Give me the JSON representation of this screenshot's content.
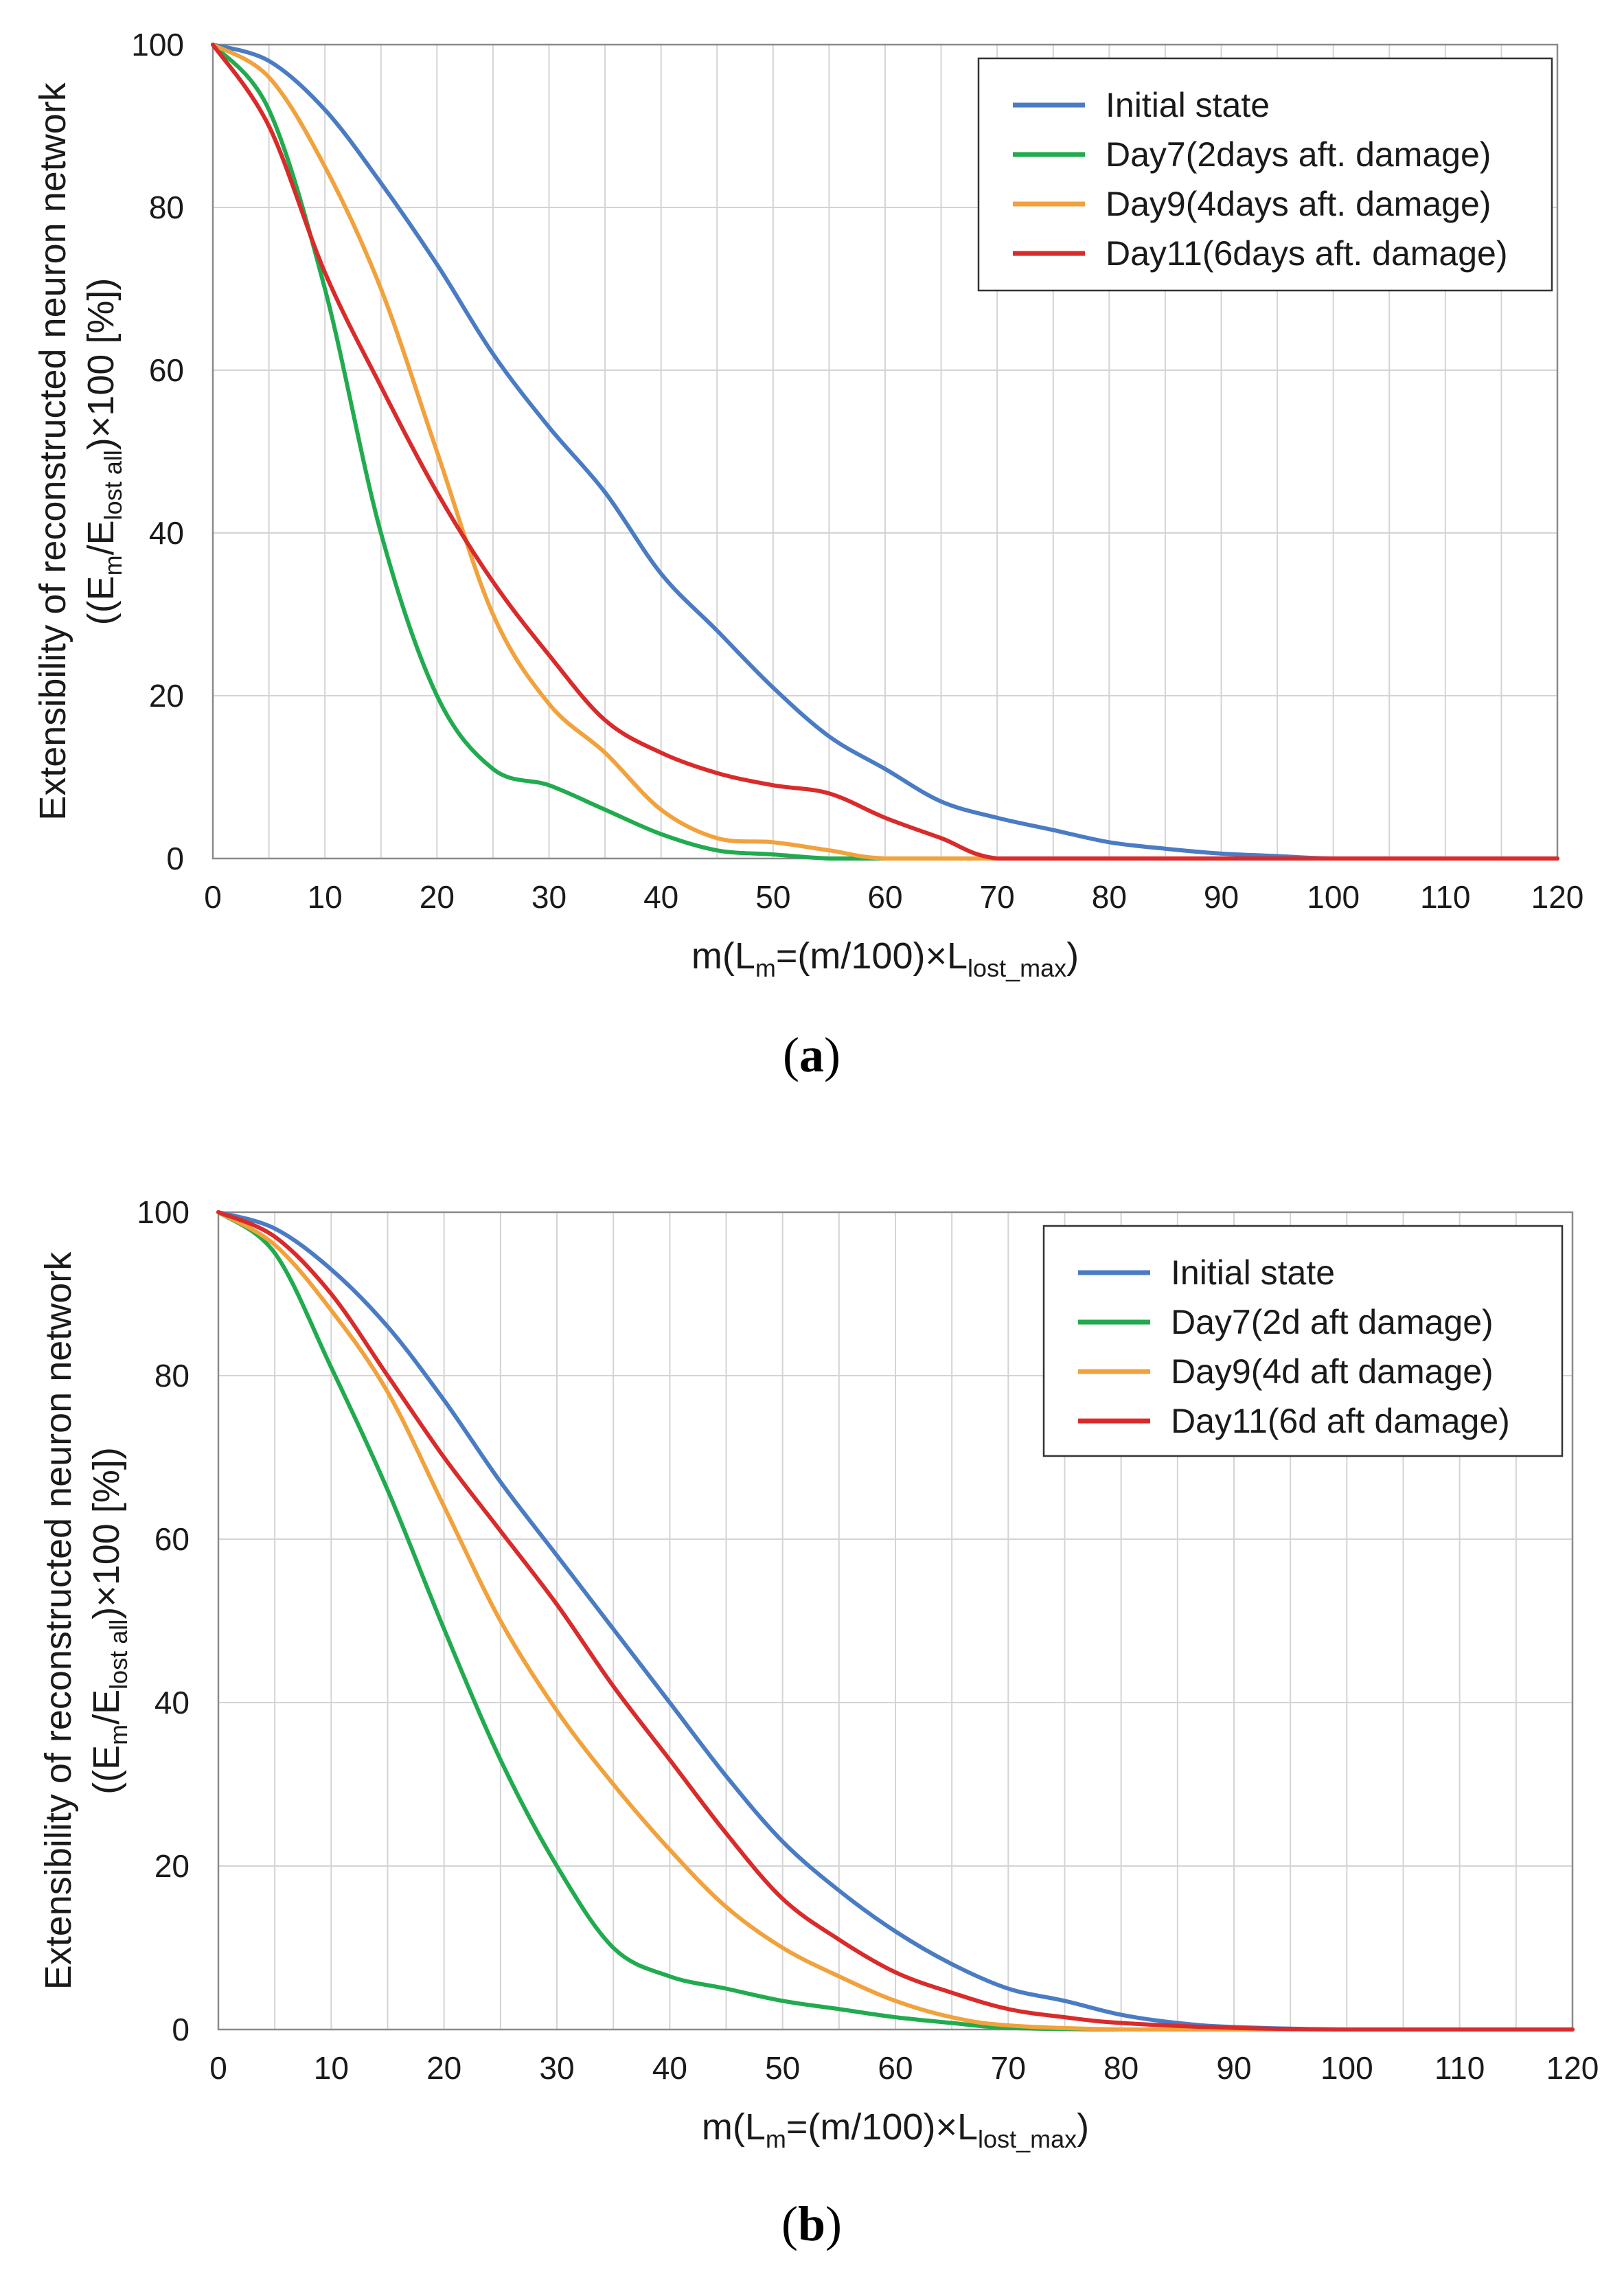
{
  "chart_data": [
    {
      "type": "line",
      "panel": "(a)",
      "panel_letter": "a",
      "xlabel": "m(L_m=(m/100)×L_lost_max)",
      "xlabel_parts": {
        "pre": "m(L",
        "sub1": "m",
        "mid": "=(m/100)×L",
        "sub2": "lost_max",
        "post": ")"
      },
      "ylabel_line1": "Extensibility of reconstructed neuron network",
      "ylabel_line2_parts": {
        "pre": "((E",
        "sub1": "m",
        "mid": "/E",
        "sub2": "lost all",
        "post": ")×100 [%])"
      },
      "xlim": [
        0,
        120
      ],
      "ylim": [
        0,
        100
      ],
      "x_ticks": [
        0,
        10,
        20,
        30,
        40,
        50,
        60,
        70,
        80,
        90,
        100,
        110,
        120
      ],
      "y_ticks": [
        0,
        20,
        40,
        60,
        80,
        100
      ],
      "x_minor_step": 5,
      "legend_position": "top-right",
      "series": [
        {
          "name": "Initial state",
          "color": "#4a7cc4",
          "x": [
            0,
            5,
            10,
            15,
            20,
            25,
            30,
            35,
            40,
            45,
            50,
            55,
            60,
            65,
            70,
            75,
            80,
            85,
            90,
            95,
            100,
            110,
            120
          ],
          "y": [
            100,
            98,
            92,
            83,
            73,
            62,
            53,
            45,
            35,
            28,
            21,
            15,
            11,
            7,
            5,
            3.5,
            2,
            1.2,
            0.6,
            0.3,
            0,
            0,
            0
          ]
        },
        {
          "name": "Day7(2days aft. damage)",
          "color": "#21ab4f",
          "x": [
            0,
            5,
            10,
            15,
            20,
            25,
            30,
            35,
            40,
            45,
            50,
            55,
            60,
            70,
            80,
            100,
            120
          ],
          "y": [
            100,
            92,
            70,
            40,
            20,
            11,
            9,
            6,
            3,
            1,
            0.5,
            0,
            0,
            0,
            0,
            0,
            0
          ]
        },
        {
          "name": "Day9(4days aft. damage)",
          "color": "#f1a23c",
          "x": [
            0,
            5,
            10,
            15,
            20,
            25,
            30,
            35,
            40,
            45,
            50,
            55,
            60,
            70,
            80,
            100,
            120
          ],
          "y": [
            100,
            96,
            85,
            70,
            50,
            30,
            19,
            13,
            6,
            2.5,
            2,
            1,
            0,
            0,
            0,
            0,
            0
          ]
        },
        {
          "name": "Day11(6days aft. damage)",
          "color": "#d92b2b",
          "x": [
            0,
            5,
            10,
            15,
            20,
            25,
            30,
            35,
            40,
            45,
            50,
            55,
            60,
            65,
            70,
            80,
            100,
            120
          ],
          "y": [
            100,
            90,
            72,
            58,
            45,
            34,
            25,
            17,
            13,
            10.5,
            9,
            8,
            5,
            2.5,
            0,
            0,
            0,
            0
          ]
        }
      ]
    },
    {
      "type": "line",
      "panel": "(b)",
      "panel_letter": "b",
      "xlabel": "m(L_m=(m/100)×L_lost_max)",
      "xlabel_parts": {
        "pre": "m(L",
        "sub1": "m",
        "mid": "=(m/100)×L",
        "sub2": "lost_max",
        "post": ")"
      },
      "ylabel_line1": "Extensibility of reconstructed neuron network",
      "ylabel_line2_parts": {
        "pre": "((E",
        "sub1": "m",
        "mid": "/E",
        "sub2": "lost all",
        "post": ")×100 [%])"
      },
      "xlim": [
        0,
        120
      ],
      "ylim": [
        0,
        100
      ],
      "x_ticks": [
        0,
        10,
        20,
        30,
        40,
        50,
        60,
        70,
        80,
        90,
        100,
        110,
        120
      ],
      "y_ticks": [
        0,
        20,
        40,
        60,
        80,
        100
      ],
      "x_minor_step": 5,
      "legend_position": "top-right",
      "series": [
        {
          "name": "Initial state",
          "color": "#4a7cc4",
          "x": [
            0,
            5,
            10,
            15,
            20,
            25,
            30,
            35,
            40,
            45,
            50,
            55,
            60,
            65,
            70,
            75,
            80,
            85,
            90,
            100,
            120
          ],
          "y": [
            100,
            98,
            93,
            86,
            77,
            67,
            58,
            49,
            40,
            31,
            23,
            17,
            12,
            8,
            5,
            3.5,
            1.8,
            0.8,
            0.3,
            0,
            0
          ]
        },
        {
          "name": "Day7(2d aft damage)",
          "color": "#21ab4f",
          "x": [
            0,
            5,
            10,
            15,
            20,
            25,
            30,
            35,
            40,
            45,
            50,
            55,
            60,
            65,
            70,
            80,
            100,
            120
          ],
          "y": [
            100,
            95,
            81,
            66,
            49,
            33,
            20,
            10,
            6.5,
            5,
            3.5,
            2.5,
            1.5,
            0.8,
            0.2,
            0,
            0,
            0
          ]
        },
        {
          "name": "Day9(4d aft damage)",
          "color": "#f1a23c",
          "x": [
            0,
            5,
            10,
            15,
            20,
            25,
            30,
            35,
            40,
            45,
            50,
            55,
            60,
            65,
            70,
            80,
            90,
            100,
            120
          ],
          "y": [
            100,
            96,
            88,
            78,
            64,
            50,
            39,
            30,
            22,
            15,
            10,
            6.5,
            3.5,
            1.5,
            0.5,
            0,
            0,
            0,
            0
          ]
        },
        {
          "name": "Day11(6d aft damage)",
          "color": "#d92b2b",
          "x": [
            0,
            5,
            10,
            15,
            20,
            25,
            30,
            35,
            40,
            45,
            50,
            55,
            60,
            65,
            70,
            75,
            80,
            90,
            100,
            120
          ],
          "y": [
            100,
            97,
            90,
            80,
            70,
            61,
            52,
            42,
            33,
            24,
            16,
            11,
            7,
            4.5,
            2.5,
            1.5,
            0.8,
            0.2,
            0,
            0
          ]
        }
      ]
    }
  ]
}
